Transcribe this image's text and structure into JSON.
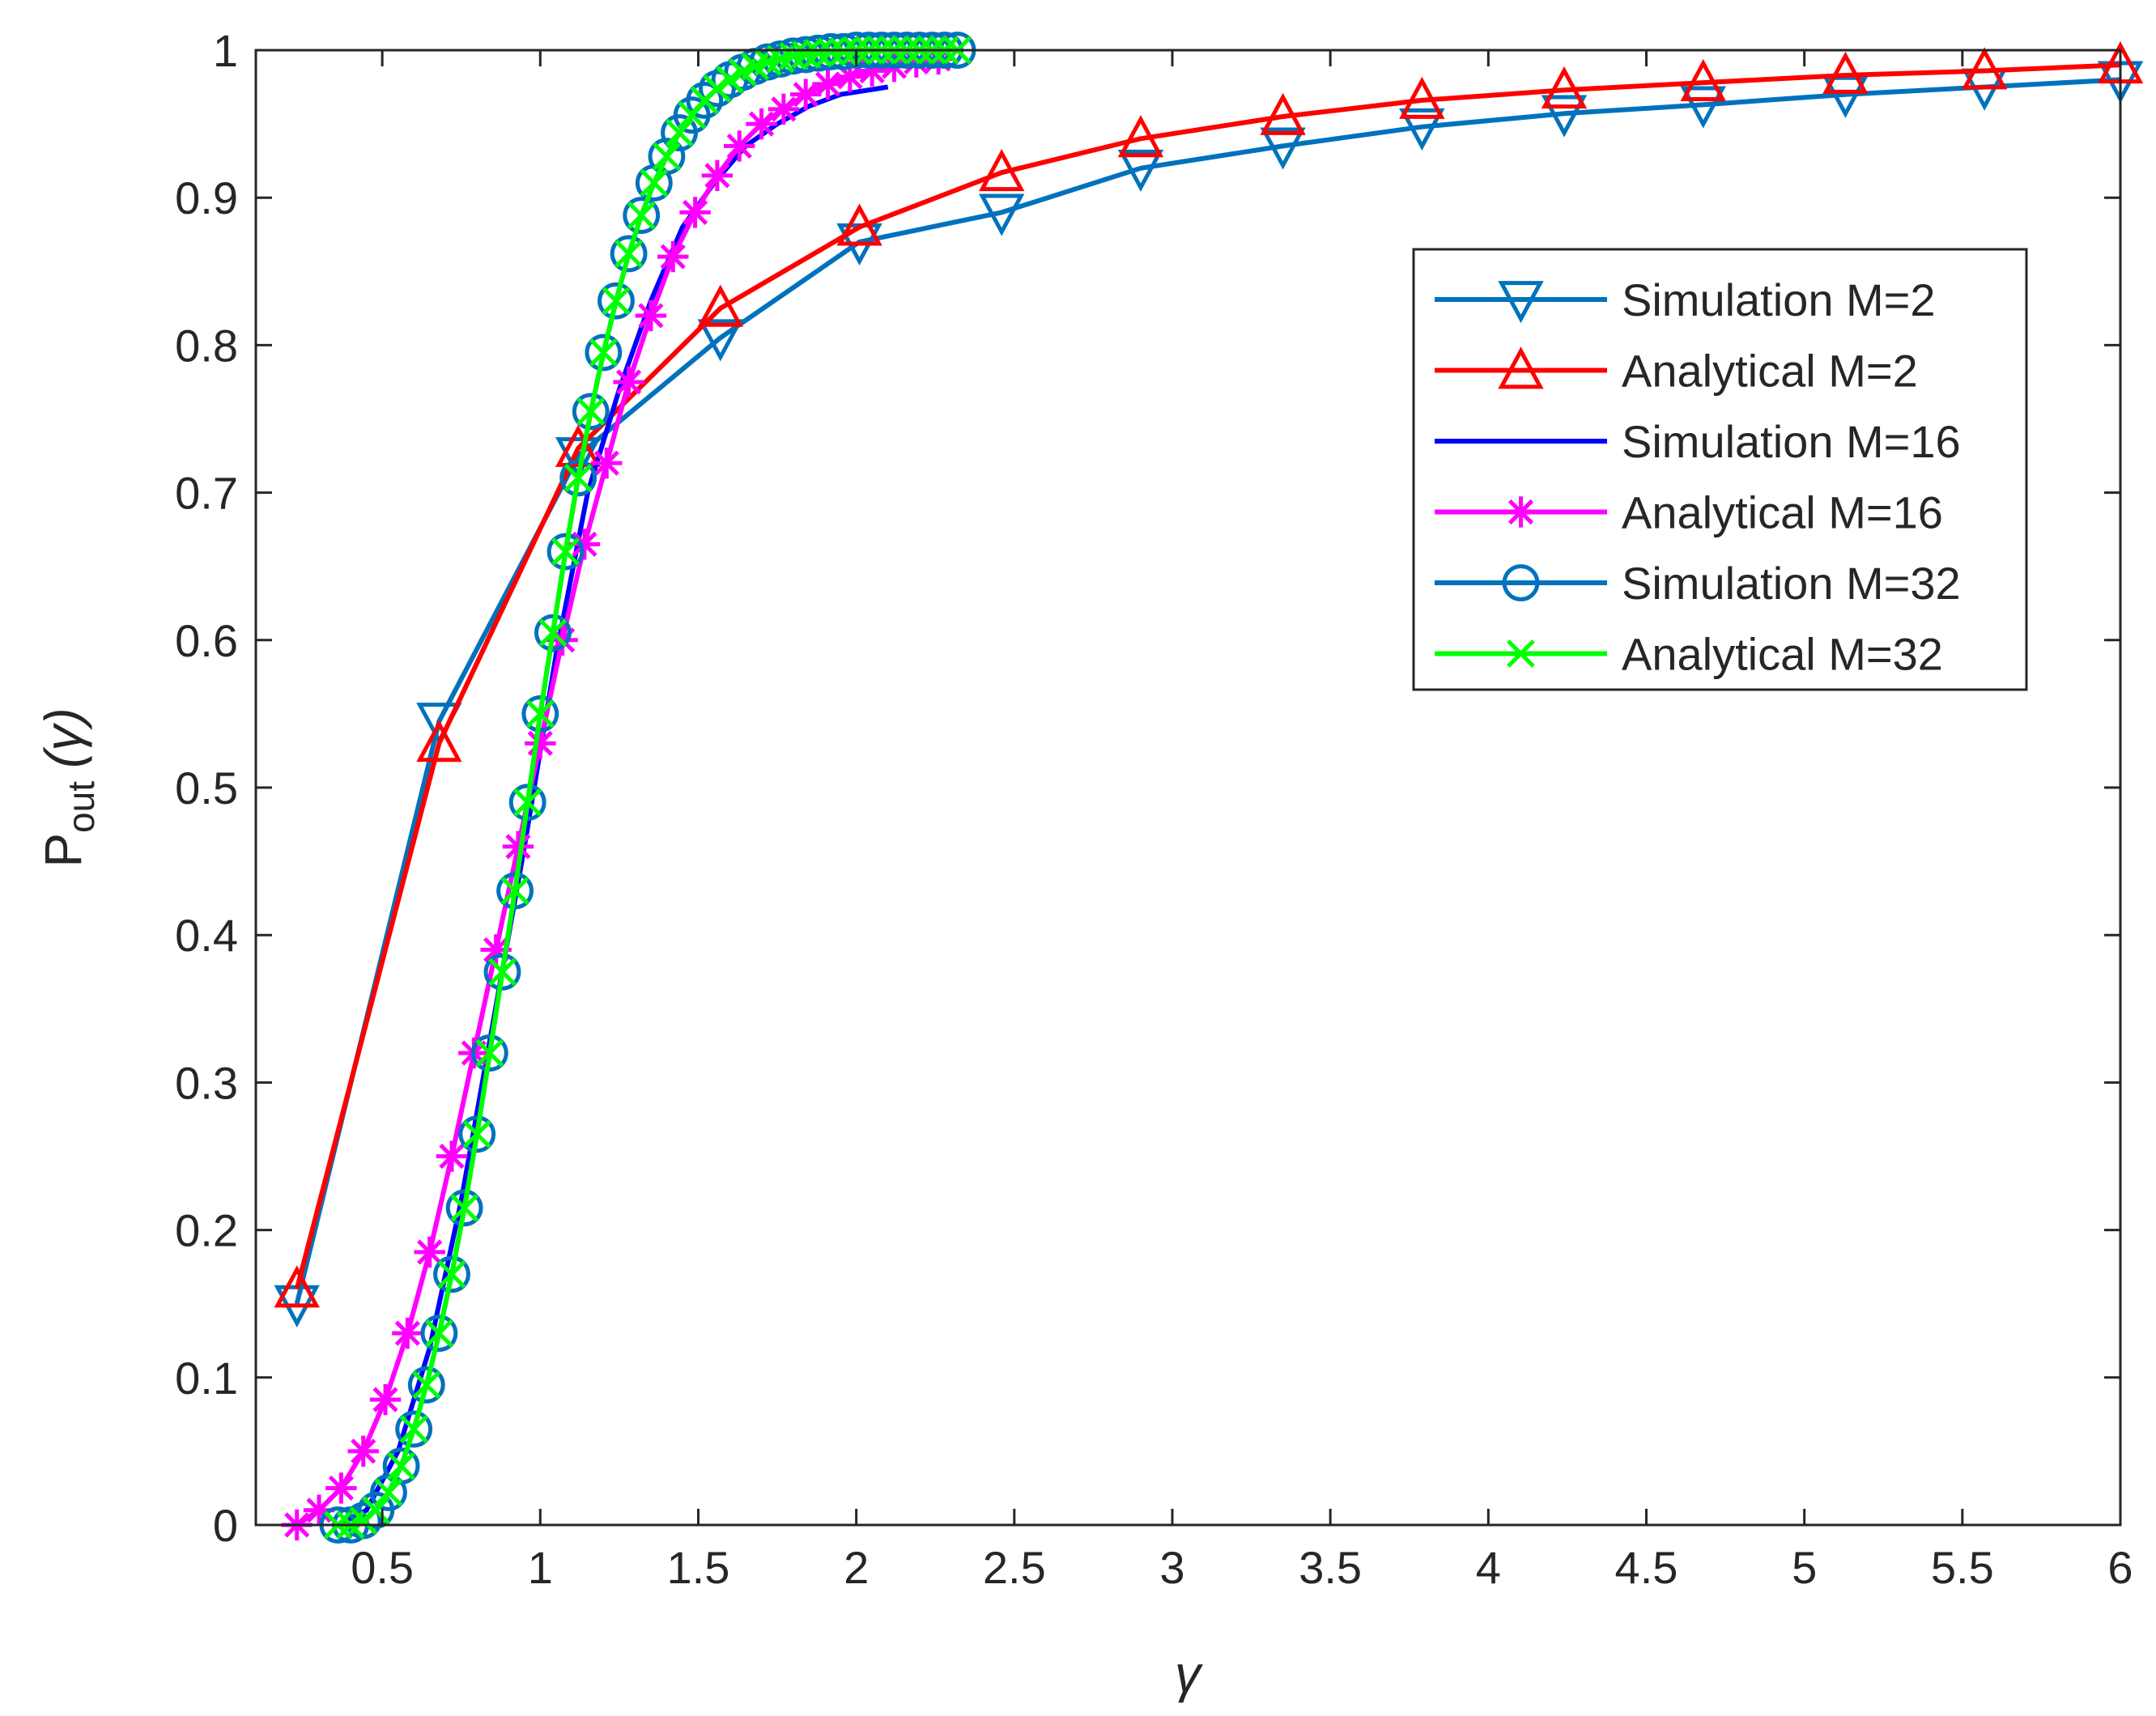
{
  "chart_data": {
    "type": "line",
    "xlabel": "γ",
    "ylabel": "P",
    "ylabel_subscript": "out",
    "ylabel_suffix": "(γ)",
    "xlim": [
      0.1,
      6.0
    ],
    "ylim": [
      0,
      1
    ],
    "xticks": [
      0.5,
      1,
      1.5,
      2,
      2.5,
      3,
      3.5,
      4,
      4.5,
      5,
      5.5,
      6
    ],
    "xtick_labels": [
      "0.5",
      "1",
      "1.5",
      "2",
      "2.5",
      "3",
      "3.5",
      "4",
      "4.5",
      "5",
      "5.5",
      "6"
    ],
    "yticks": [
      0,
      0.1,
      0.2,
      0.3,
      0.4,
      0.5,
      0.6,
      0.7,
      0.8,
      0.9,
      1
    ],
    "ytick_labels": [
      "0",
      "0.1",
      "0.2",
      "0.3",
      "0.4",
      "0.5",
      "0.6",
      "0.7",
      "0.8",
      "0.9",
      "1"
    ],
    "grid": false,
    "legend_position": "upper-right",
    "series": [
      {
        "name": "Simulation M=2",
        "color": "#0072BD",
        "marker": "triangle-down",
        "x": [
          0.23,
          0.68,
          1.12,
          1.57,
          2.01,
          2.46,
          2.9,
          3.35,
          3.79,
          4.24,
          4.68,
          5.13,
          5.57,
          6.0
        ],
        "y": [
          0.15,
          0.545,
          0.725,
          0.805,
          0.87,
          0.89,
          0.92,
          0.935,
          0.948,
          0.957,
          0.963,
          0.97,
          0.975,
          0.98
        ]
      },
      {
        "name": "Analytical M=2",
        "color": "#FF0000",
        "marker": "triangle-up",
        "x": [
          0.23,
          0.68,
          1.12,
          1.57,
          2.01,
          2.46,
          2.9,
          3.35,
          3.79,
          4.24,
          4.68,
          5.13,
          5.57,
          6.0
        ],
        "y": [
          0.16,
          0.53,
          0.73,
          0.825,
          0.88,
          0.917,
          0.94,
          0.955,
          0.966,
          0.973,
          0.978,
          0.983,
          0.986,
          0.99
        ]
      },
      {
        "name": "Simulation M=16",
        "color": "#0000FF",
        "marker": "none",
        "x": [
          0.36,
          0.45,
          0.55,
          0.65,
          0.75,
          0.85,
          0.95,
          1.05,
          1.15,
          1.25,
          1.35,
          1.45,
          1.55,
          1.65,
          1.75,
          1.85,
          1.95,
          2.1
        ],
        "y": [
          0.0,
          0.01,
          0.05,
          0.12,
          0.22,
          0.34,
          0.46,
          0.59,
          0.7,
          0.77,
          0.83,
          0.88,
          0.91,
          0.935,
          0.95,
          0.962,
          0.97,
          0.975
        ]
      },
      {
        "name": "Analytical M=16",
        "color": "#FF00FF",
        "marker": "asterisk",
        "x": [
          0.23,
          0.3,
          0.37,
          0.44,
          0.51,
          0.58,
          0.65,
          0.72,
          0.79,
          0.86,
          0.93,
          1.0,
          1.07,
          1.14,
          1.21,
          1.28,
          1.35,
          1.42,
          1.49,
          1.56,
          1.63,
          1.7,
          1.77,
          1.84,
          1.91,
          1.98,
          2.05,
          2.12,
          2.19,
          2.26
        ],
        "y": [
          0.0,
          0.01,
          0.025,
          0.05,
          0.085,
          0.13,
          0.185,
          0.25,
          0.32,
          0.39,
          0.46,
          0.53,
          0.6,
          0.665,
          0.72,
          0.775,
          0.82,
          0.86,
          0.89,
          0.915,
          0.935,
          0.95,
          0.96,
          0.97,
          0.977,
          0.982,
          0.986,
          0.989,
          0.992,
          0.994
        ]
      },
      {
        "name": "Simulation M=32",
        "color": "#0072BD",
        "marker": "circle",
        "x": [
          0.36,
          0.4,
          0.44,
          0.48,
          0.52,
          0.56,
          0.6,
          0.64,
          0.68,
          0.72,
          0.76,
          0.8,
          0.84,
          0.88,
          0.92,
          0.96,
          1.0,
          1.04,
          1.08,
          1.12,
          1.16,
          1.2,
          1.24,
          1.28,
          1.32,
          1.36,
          1.4,
          1.44,
          1.48,
          1.52,
          1.56,
          1.6,
          1.64,
          1.68,
          1.72,
          1.76,
          1.8,
          1.84,
          1.88,
          1.92,
          1.96,
          2.0,
          2.04,
          2.08,
          2.12,
          2.16,
          2.2,
          2.24,
          2.28,
          2.32
        ],
        "y": [
          0.0,
          0.0,
          0.003,
          0.01,
          0.022,
          0.04,
          0.065,
          0.095,
          0.13,
          0.17,
          0.215,
          0.265,
          0.32,
          0.375,
          0.43,
          0.49,
          0.55,
          0.605,
          0.66,
          0.71,
          0.755,
          0.795,
          0.83,
          0.862,
          0.888,
          0.91,
          0.928,
          0.944,
          0.956,
          0.966,
          0.974,
          0.98,
          0.985,
          0.989,
          0.992,
          0.994,
          0.996,
          0.997,
          0.998,
          0.999,
          0.999,
          1.0,
          1.0,
          1.0,
          1.0,
          1.0,
          1.0,
          1.0,
          1.0,
          1.0
        ]
      },
      {
        "name": "Analytical M=32",
        "color": "#00FF00",
        "marker": "x",
        "x": [
          0.36,
          0.4,
          0.44,
          0.48,
          0.52,
          0.56,
          0.6,
          0.64,
          0.68,
          0.72,
          0.76,
          0.8,
          0.84,
          0.88,
          0.92,
          0.96,
          1.0,
          1.04,
          1.08,
          1.12,
          1.16,
          1.2,
          1.24,
          1.28,
          1.32,
          1.36,
          1.4,
          1.44,
          1.48,
          1.52,
          1.56,
          1.6,
          1.64,
          1.68,
          1.72,
          1.76,
          1.8,
          1.84,
          1.88,
          1.92,
          1.96,
          2.0,
          2.04,
          2.08,
          2.12,
          2.16,
          2.2,
          2.24,
          2.28,
          2.32
        ],
        "y": [
          0.0,
          0.0,
          0.003,
          0.01,
          0.022,
          0.04,
          0.065,
          0.095,
          0.13,
          0.17,
          0.215,
          0.265,
          0.32,
          0.375,
          0.43,
          0.49,
          0.55,
          0.605,
          0.66,
          0.71,
          0.755,
          0.795,
          0.83,
          0.862,
          0.888,
          0.91,
          0.928,
          0.944,
          0.956,
          0.966,
          0.974,
          0.98,
          0.985,
          0.989,
          0.992,
          0.994,
          0.996,
          0.997,
          0.998,
          0.999,
          0.999,
          1.0,
          1.0,
          1.0,
          1.0,
          1.0,
          1.0,
          1.0,
          1.0,
          1.0
        ]
      }
    ]
  }
}
